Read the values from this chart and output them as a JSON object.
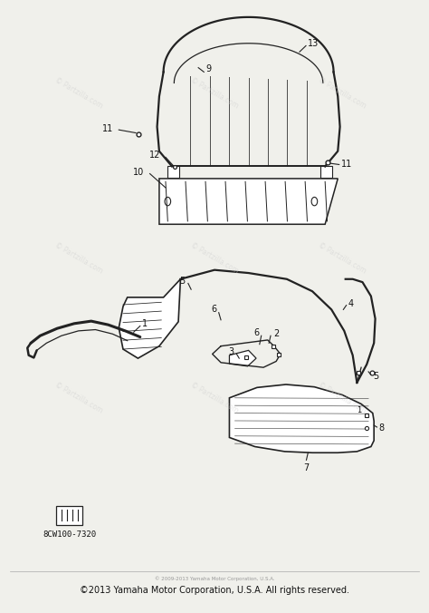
{
  "bg_color": "#f0f0eb",
  "line_color": "#222222",
  "watermark_color": "#cccccc",
  "watermark_text": "© Partzilla.com",
  "footer_text": "©2013 Yamaha Motor Corporation, U.S.A. All rights reserved.",
  "footer_small_text": "© 2009-2013 Yamaha Motor Corporation, U.S.A.",
  "part_number_label": "8CW100-7320"
}
